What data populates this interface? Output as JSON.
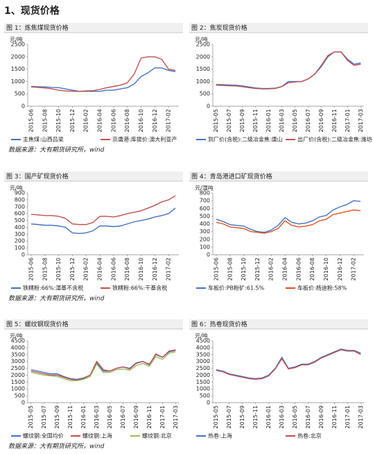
{
  "title": "1、现货价格",
  "sources": [
    "数据来源：大有期货研究所，wind",
    "数据来源：大有期货研究所，wind",
    "数据来源：大有期货研究所，wind"
  ],
  "chart_data": [
    {
      "type": "line",
      "title": "图 1：炼焦煤现货价格",
      "y_label": "元/吨",
      "categories": [
        "2015-06",
        null,
        "2015-08",
        null,
        "2015-10",
        null,
        "2015-12",
        null,
        "2016-02",
        null,
        "2016-04",
        null,
        "2016-06",
        null,
        "2016-08",
        null,
        "2016-10",
        null,
        "2016-12",
        null,
        "2017-02",
        null
      ],
      "ylim": [
        0,
        2500
      ],
      "yticks": [
        0,
        500,
        1000,
        1500,
        2000,
        2500
      ],
      "grid": false,
      "series": [
        {
          "name": "主焦煤:山西吕梁",
          "color": "#4472c4",
          "values": [
            800,
            790,
            780,
            760,
            750,
            700,
            650,
            600,
            600,
            600,
            600,
            650,
            650,
            700,
            750,
            900,
            1200,
            1350,
            1550,
            1550,
            1450,
            1400
          ]
        },
        {
          "name": "京唐港:库提价:澳大利亚产",
          "color": "#c0504d",
          "values": [
            780,
            760,
            740,
            700,
            650,
            620,
            600,
            600,
            620,
            630,
            680,
            750,
            800,
            850,
            950,
            1300,
            1950,
            2000,
            2000,
            1900,
            1500,
            1450
          ]
        }
      ]
    },
    {
      "type": "line",
      "title": "图 2：焦炭现货价格",
      "y_label": "元/吨",
      "categories": [
        "2015-05",
        null,
        "2015-07",
        null,
        "2015-09",
        null,
        "2015-11",
        null,
        "2016-01",
        null,
        "2016-03",
        null,
        "2016-05",
        null,
        "2016-07",
        null,
        "2016-09",
        null,
        "2016-11",
        null,
        "2017-01",
        null,
        "2017-03"
      ],
      "ylim": [
        0,
        2500
      ],
      "yticks": [
        0,
        500,
        1000,
        1500,
        2000,
        2500
      ],
      "grid": false,
      "series": [
        {
          "name": "到厂价(含税):二级冶金焦:唐山",
          "color": "#4472c4",
          "values": [
            880,
            870,
            860,
            850,
            820,
            780,
            740,
            720,
            720,
            730,
            800,
            1000,
            1000,
            1000,
            1100,
            1300,
            1600,
            2000,
            2200,
            2200,
            1900,
            1700,
            1750
          ]
        },
        {
          "name": "出厂价(含税):二级冶金焦:潍坊",
          "color": "#c0504d",
          "values": [
            850,
            840,
            830,
            820,
            790,
            750,
            720,
            700,
            700,
            720,
            790,
            950,
            980,
            1000,
            1100,
            1300,
            1650,
            2050,
            2200,
            2200,
            1850,
            1650,
            1700
          ]
        }
      ]
    },
    {
      "type": "line",
      "title": "图 3：国产矿现货价格",
      "y_label": "元/吨",
      "categories": [
        "2015-06",
        null,
        "2015-08",
        null,
        "2015-10",
        null,
        "2015-12",
        null,
        "2016-02",
        null,
        "2016-04",
        null,
        "2016-06",
        null,
        "2016-08",
        null,
        "2016-10",
        null,
        "2016-12",
        null,
        "2017-02",
        null
      ],
      "ylim": [
        0,
        900
      ],
      "yticks": [
        0,
        100,
        200,
        300,
        400,
        500,
        600,
        700,
        800,
        900
      ],
      "grid": false,
      "series": [
        {
          "name": "铁精粉:66%:湿基不含税",
          "color": "#4472c4",
          "values": [
            450,
            440,
            430,
            430,
            420,
            400,
            320,
            310,
            320,
            350,
            420,
            420,
            410,
            420,
            450,
            480,
            500,
            520,
            550,
            570,
            600,
            680
          ]
        },
        {
          "name": "铁精粉:66%:干基含税",
          "color": "#c0504d",
          "values": [
            590,
            580,
            570,
            570,
            560,
            530,
            450,
            440,
            440,
            470,
            560,
            560,
            550,
            570,
            600,
            620,
            640,
            680,
            720,
            770,
            800,
            860
          ]
        }
      ]
    },
    {
      "type": "line",
      "title": "图 4：青岛港进口矿现货价格",
      "y_label": "元/湿吨",
      "categories": [
        "2015-06",
        null,
        "2015-08",
        null,
        "2015-10",
        null,
        "2015-12",
        null,
        "2016-02",
        null,
        "2016-04",
        null,
        "2016-06",
        null,
        "2016-08",
        null,
        "2016-10",
        null,
        "2016-12",
        null,
        "2017-02",
        null
      ],
      "ylim": [
        0,
        800
      ],
      "yticks": [
        0,
        100,
        200,
        300,
        400,
        500,
        600,
        700,
        800
      ],
      "grid": false,
      "series": [
        {
          "name": "车板价:PB粉矿:61.5%",
          "color": "#4472c4",
          "values": [
            460,
            430,
            390,
            380,
            370,
            330,
            300,
            290,
            320,
            380,
            480,
            420,
            400,
            410,
            440,
            490,
            510,
            580,
            620,
            650,
            700,
            690
          ]
        },
        {
          "name": "车板价:杨迪粉:58%",
          "color": "#e0501b",
          "values": [
            420,
            400,
            360,
            350,
            340,
            300,
            290,
            280,
            300,
            340,
            440,
            380,
            360,
            370,
            390,
            440,
            460,
            520,
            540,
            560,
            580,
            570
          ]
        }
      ]
    },
    {
      "type": "line",
      "title": "图 5：螺纹钢现货价格",
      "y_label": "元/吨",
      "categories": [
        "2015-05",
        null,
        "2015-07",
        null,
        "2015-09",
        null,
        "2015-11",
        null,
        "2016-01",
        null,
        "2016-03",
        null,
        "2016-05",
        null,
        "2016-07",
        null,
        "2016-09",
        null,
        "2016-11",
        null,
        "2017-01",
        null,
        "2017-03"
      ],
      "ylim": [
        0,
        4500
      ],
      "yticks": [
        0,
        500,
        1000,
        1500,
        2000,
        2500,
        3000,
        3500,
        4000,
        4500
      ],
      "grid": false,
      "series": [
        {
          "name": "螺纹钢:全国均价",
          "color": "#4472c4",
          "values": [
            2400,
            2300,
            2200,
            2100,
            2100,
            1900,
            1750,
            1700,
            1800,
            2000,
            2900,
            2300,
            2300,
            2500,
            2600,
            2500,
            2900,
            3000,
            2800,
            3500,
            3300,
            3700,
            3800
          ]
        },
        {
          "name": "螺纹钢:上海",
          "color": "#c0504d",
          "values": [
            2300,
            2200,
            2100,
            2000,
            2000,
            1850,
            1700,
            1650,
            1750,
            2000,
            3000,
            2400,
            2300,
            2500,
            2600,
            2450,
            2850,
            3000,
            2750,
            3550,
            3300,
            3750,
            3850
          ]
        },
        {
          "name": "螺纹钢:北京",
          "color": "#9bbb59",
          "values": [
            2200,
            2100,
            2000,
            1950,
            1900,
            1750,
            1600,
            1600,
            1700,
            1900,
            2800,
            2200,
            2200,
            2400,
            2450,
            2350,
            2700,
            2850,
            2650,
            3350,
            3150,
            3600,
            3700
          ]
        }
      ]
    },
    {
      "type": "line",
      "title": "图 6：热卷现货价格",
      "y_label": "元/吨",
      "categories": [
        "2015-05",
        null,
        "2015-07",
        null,
        "2015-09",
        null,
        "2015-11",
        null,
        "2016-01",
        null,
        "2016-03",
        null,
        "2016-05",
        null,
        "2016-07",
        null,
        "2016-09",
        null,
        "2016-11",
        null,
        "2017-01",
        null,
        "2017-03"
      ],
      "ylim": [
        0,
        4500
      ],
      "yticks": [
        0,
        500,
        1000,
        1500,
        2000,
        2500,
        3000,
        3500,
        4000,
        4500
      ],
      "grid": false,
      "series": [
        {
          "name": "热卷:上海",
          "color": "#4472c4",
          "values": [
            2400,
            2300,
            2100,
            2000,
            1900,
            1800,
            1750,
            1800,
            2000,
            2500,
            3300,
            2500,
            2600,
            2800,
            2800,
            3000,
            3300,
            3500,
            3700,
            3900,
            3800,
            3800,
            3600
          ]
        },
        {
          "name": "热卷:北京",
          "color": "#c0504d",
          "values": [
            2350,
            2250,
            2050,
            1950,
            1850,
            1750,
            1700,
            1750,
            1950,
            2450,
            3200,
            2450,
            2550,
            2750,
            2750,
            2950,
            3250,
            3450,
            3650,
            3850,
            3750,
            3750,
            3500
          ]
        }
      ]
    }
  ]
}
